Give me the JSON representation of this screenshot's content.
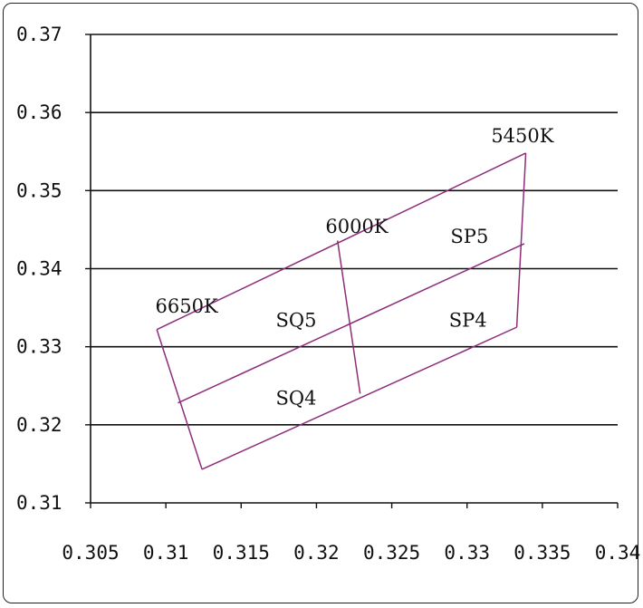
{
  "chart_data": {
    "type": "line",
    "title": "",
    "xlabel": "",
    "ylabel": "",
    "xlim": [
      0.305,
      0.34
    ],
    "ylim": [
      0.31,
      0.37
    ],
    "x_ticks": [
      "0.305",
      "0.31",
      "0.315",
      "0.32",
      "0.325",
      "0.33",
      "0.335",
      "0.34"
    ],
    "y_ticks": [
      "0.31",
      "0.32",
      "0.33",
      "0.34",
      "0.35",
      "0.36",
      "0.37"
    ],
    "x_tick_values": [
      0.305,
      0.31,
      0.315,
      0.32,
      0.325,
      0.33,
      0.335,
      0.34
    ],
    "y_tick_values": [
      0.31,
      0.32,
      0.33,
      0.34,
      0.35,
      0.36,
      0.37
    ],
    "grid": "horizontal",
    "line_color": "#8e2d7a",
    "segments": [
      {
        "name": "top-boundary",
        "points": [
          [
            0.3094,
            0.3322
          ],
          [
            0.3339,
            0.3548
          ]
        ]
      },
      {
        "name": "middle-boundary",
        "points": [
          [
            0.3108,
            0.3228
          ],
          [
            0.3338,
            0.3432
          ]
        ]
      },
      {
        "name": "bottom-boundary",
        "points": [
          [
            0.3124,
            0.3143
          ],
          [
            0.3333,
            0.3325
          ]
        ]
      },
      {
        "name": "left-boundary",
        "points": [
          [
            0.3094,
            0.3322
          ],
          [
            0.3124,
            0.3143
          ]
        ]
      },
      {
        "name": "right-boundary",
        "points": [
          [
            0.3339,
            0.3548
          ],
          [
            0.3333,
            0.3325
          ]
        ]
      },
      {
        "name": "center-divider",
        "points": [
          [
            0.3214,
            0.3436
          ],
          [
            0.3229,
            0.324
          ]
        ]
      }
    ],
    "annotations": [
      {
        "text": "5450K",
        "x": 0.3316,
        "y": 0.3562
      },
      {
        "text": "6000K",
        "x": 0.3206,
        "y": 0.3446
      },
      {
        "text": "6650K",
        "x": 0.3093,
        "y": 0.3344
      },
      {
        "text": "SP5",
        "x": 0.3289,
        "y": 0.3433
      },
      {
        "text": "SQ5",
        "x": 0.3173,
        "y": 0.3326
      },
      {
        "text": "SP4",
        "x": 0.3288,
        "y": 0.3326
      },
      {
        "text": "SQ4",
        "x": 0.3173,
        "y": 0.3226
      }
    ]
  }
}
